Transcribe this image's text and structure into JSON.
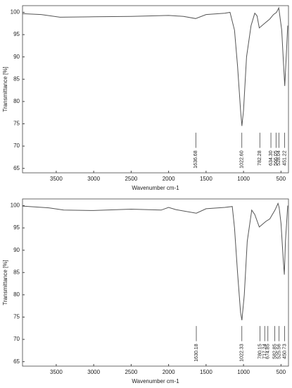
{
  "chart_data": [
    {
      "type": "line",
      "ylabel": "Transmittance [%]",
      "xlabel": "Wavenumber cm-1",
      "color": "#555555",
      "xlim": [
        3950,
        400
      ],
      "ylim": [
        64,
        101.5
      ],
      "xticks": [
        3500,
        3000,
        2500,
        2000,
        1500,
        1000,
        500
      ],
      "yticks": [
        65,
        70,
        75,
        80,
        85,
        90,
        95,
        100
      ],
      "x": [
        3950,
        3700,
        3450,
        3000,
        2500,
        2000,
        1800,
        1640,
        1500,
        1250,
        1180,
        1120,
        1080,
        1040,
        1022,
        1000,
        960,
        900,
        850,
        820,
        790,
        720,
        650,
        600,
        560,
        530,
        490,
        465,
        450,
        430,
        410
      ],
      "values": [
        99.7,
        99.5,
        98.9,
        99.0,
        99.1,
        99.3,
        99.1,
        98.6,
        99.5,
        99.8,
        100.0,
        96,
        88,
        78,
        74.5,
        78,
        90,
        97,
        99.8,
        99.2,
        96.5,
        97.5,
        98.5,
        99.5,
        100,
        101,
        96,
        88,
        83.5,
        90,
        97
      ],
      "peaks": [
        {
          "value": 1636.68,
          "label": "1636.68"
        },
        {
          "value": 1022.6,
          "label": "1022.60"
        },
        {
          "value": 782.28,
          "label": "782.28"
        },
        {
          "value": 634.3,
          "label": "634.30"
        },
        {
          "value": 566.05,
          "label": "566.05"
        },
        {
          "value": 528.04,
          "label": "528.04"
        },
        {
          "value": 451.22,
          "label": "451.22"
        }
      ]
    },
    {
      "type": "line",
      "ylabel": "Transmittance [%]",
      "xlabel": "Wavenumber cm-1",
      "color": "#555555",
      "xlim": [
        3950,
        400
      ],
      "ylim": [
        64,
        101.5
      ],
      "xticks": [
        3500,
        3000,
        2500,
        2000,
        1500,
        1000,
        500
      ],
      "yticks": [
        65,
        70,
        75,
        80,
        85,
        90,
        95,
        100
      ],
      "x": [
        3950,
        3600,
        3400,
        3000,
        2500,
        2100,
        2000,
        1900,
        1630,
        1500,
        1250,
        1150,
        1120,
        1080,
        1040,
        1022,
        990,
        950,
        890,
        850,
        790,
        700,
        650,
        580,
        540,
        525,
        500,
        470,
        455,
        440,
        410
      ],
      "values": [
        99.9,
        99.5,
        99.0,
        98.9,
        99.2,
        99.0,
        99.6,
        99.1,
        98.3,
        99.3,
        99.6,
        99.8,
        95,
        85,
        76,
        74.3,
        80,
        92,
        99,
        98,
        95.2,
        96.5,
        97,
        99,
        100.5,
        99.6,
        96,
        88,
        84.5,
        92,
        100
      ],
      "peaks": [
        {
          "value": 1630.18,
          "label": "1630.18"
        },
        {
          "value": 1022.33,
          "label": "1022.33"
        },
        {
          "value": 780.15,
          "label": "780.15"
        },
        {
          "value": 717.24,
          "label": "717.24"
        },
        {
          "value": 674.85,
          "label": "674.85"
        },
        {
          "value": 582.85,
          "label": "582.85"
        },
        {
          "value": 525.56,
          "label": "525.56"
        },
        {
          "value": 450.73,
          "label": "450.73"
        }
      ]
    }
  ]
}
